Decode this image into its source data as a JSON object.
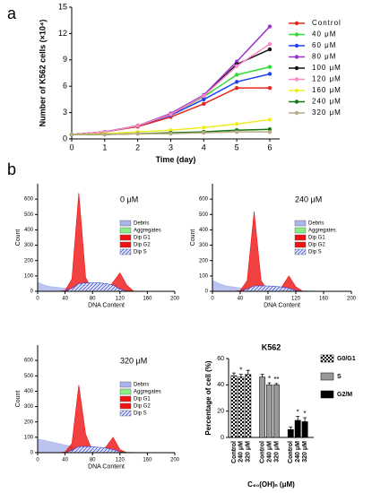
{
  "panels": [
    "a",
    "b"
  ],
  "chart_data": [
    {
      "type": "line",
      "xlabel": "Time (day)",
      "ylabel": "Number of K562 cells (×10⁴)",
      "x": [
        0,
        1,
        2,
        3,
        4,
        5,
        6
      ],
      "xlim": [
        0,
        6.3
      ],
      "xticks": [
        0,
        1,
        2,
        3,
        4,
        5,
        6
      ],
      "ylim": [
        0,
        15
      ],
      "yticks": [
        0,
        3,
        6,
        9,
        12,
        15
      ],
      "series": [
        {
          "name": "Control",
          "color": "#e8281e",
          "values": [
            0.5,
            0.8,
            1.4,
            2.5,
            4.0,
            5.8,
            5.8
          ]
        },
        {
          "name": "40 μM",
          "color": "#33dd33",
          "values": [
            0.5,
            0.8,
            1.5,
            2.8,
            4.8,
            7.3,
            8.2
          ]
        },
        {
          "name": "60 μM",
          "color": "#2244ee",
          "values": [
            0.5,
            0.8,
            1.5,
            2.7,
            4.5,
            6.5,
            7.4
          ]
        },
        {
          "name": "80 μM",
          "color": "#9933cc",
          "values": [
            0.5,
            0.8,
            1.5,
            2.9,
            5.0,
            8.8,
            12.8
          ]
        },
        {
          "name": "100 μM",
          "color": "#111111",
          "values": [
            0.5,
            0.8,
            1.5,
            2.8,
            4.9,
            8.5,
            10.2
          ]
        },
        {
          "name": "120 μM",
          "color": "#ff88cc",
          "values": [
            0.5,
            0.8,
            1.5,
            2.8,
            4.9,
            8.3,
            10.8
          ]
        },
        {
          "name": "160 μM",
          "color": "#eeee22",
          "values": [
            0.5,
            0.6,
            0.8,
            1.0,
            1.3,
            1.7,
            2.2
          ]
        },
        {
          "name": "240 μM",
          "color": "#117711",
          "values": [
            0.5,
            0.5,
            0.6,
            0.7,
            0.8,
            1.0,
            1.1
          ]
        },
        {
          "name": "320 μM",
          "color": "#bbaa88",
          "values": [
            0.5,
            0.5,
            0.6,
            0.6,
            0.7,
            0.8,
            0.8
          ]
        }
      ]
    },
    {
      "type": "area",
      "title": "0 μM",
      "xlabel": "DNA Content",
      "ylabel": "Count",
      "x": [
        0,
        10,
        20,
        30,
        40,
        50,
        60,
        70,
        80,
        90,
        100,
        110,
        120,
        130,
        140,
        150,
        160,
        170,
        180,
        190,
        200
      ],
      "xlim": [
        0,
        200
      ],
      "xticks": [
        0,
        40,
        80,
        120,
        160,
        200
      ],
      "ylim": [
        0,
        700
      ],
      "yticks": [
        0,
        100,
        200,
        300,
        400,
        500,
        600
      ],
      "series": [
        {
          "name": "Debris",
          "color": "#aab4ee",
          "values": [
            60,
            40,
            30,
            25,
            20,
            15,
            12,
            10,
            8,
            6,
            5,
            4,
            3,
            2,
            2,
            1,
            0,
            0,
            0,
            0,
            0
          ]
        },
        {
          "name": "Aggregates",
          "color": "#88ee88",
          "values": [
            0,
            0,
            0,
            0,
            0,
            0,
            0,
            0,
            0,
            0,
            0,
            2,
            3,
            3,
            2,
            1,
            0,
            0,
            0,
            0,
            0
          ]
        },
        {
          "name": "Dip G1",
          "color": "#ee1111",
          "values": [
            0,
            0,
            0,
            0,
            5,
            80,
            640,
            90,
            5,
            0,
            0,
            0,
            0,
            0,
            0,
            0,
            0,
            0,
            0,
            0,
            0
          ]
        },
        {
          "name": "Dip G2",
          "color": "#ee1111",
          "values": [
            0,
            0,
            0,
            0,
            0,
            0,
            0,
            0,
            0,
            0,
            0,
            60,
            120,
            40,
            0,
            0,
            0,
            0,
            0,
            0,
            0
          ]
        },
        {
          "name": "Dip S",
          "color": "#3344cc",
          "pattern": "diag",
          "values": [
            0,
            0,
            0,
            0,
            0,
            20,
            50,
            55,
            55,
            55,
            50,
            40,
            15,
            0,
            0,
            0,
            0,
            0,
            0,
            0,
            0
          ]
        }
      ]
    },
    {
      "type": "area",
      "title": "240 μM",
      "xlabel": "DNA Content",
      "ylabel": "Count",
      "x": [
        0,
        10,
        20,
        30,
        40,
        50,
        60,
        70,
        80,
        90,
        100,
        110,
        120,
        130,
        140,
        150,
        160,
        170,
        180,
        190,
        200
      ],
      "xlim": [
        0,
        200
      ],
      "xticks": [
        0,
        40,
        80,
        120,
        160,
        200
      ],
      "ylim": [
        0,
        700
      ],
      "yticks": [
        0,
        100,
        200,
        300,
        400,
        500,
        600
      ],
      "series": [
        {
          "name": "Debris",
          "color": "#aab4ee",
          "values": [
            70,
            50,
            35,
            28,
            22,
            18,
            14,
            11,
            9,
            7,
            6,
            5,
            4,
            3,
            2,
            1,
            0,
            0,
            0,
            0,
            0
          ]
        },
        {
          "name": "Aggregates",
          "color": "#88ee88",
          "values": [
            0,
            0,
            0,
            0,
            0,
            0,
            0,
            0,
            0,
            0,
            0,
            2,
            3,
            3,
            2,
            1,
            0,
            0,
            0,
            0,
            0
          ]
        },
        {
          "name": "Dip G1",
          "color": "#ee1111",
          "values": [
            0,
            0,
            0,
            0,
            5,
            70,
            520,
            70,
            5,
            0,
            0,
            0,
            0,
            0,
            0,
            0,
            0,
            0,
            0,
            0,
            0
          ]
        },
        {
          "name": "Dip G2",
          "color": "#ee1111",
          "values": [
            0,
            0,
            0,
            0,
            0,
            0,
            0,
            0,
            0,
            0,
            30,
            100,
            30,
            0,
            0,
            0,
            0,
            0,
            0,
            0,
            0
          ]
        },
        {
          "name": "Dip S",
          "color": "#3344cc",
          "pattern": "diag",
          "values": [
            0,
            0,
            0,
            0,
            0,
            15,
            35,
            35,
            35,
            32,
            28,
            20,
            5,
            0,
            0,
            0,
            0,
            0,
            0,
            0,
            0
          ]
        }
      ]
    },
    {
      "type": "area",
      "title": "320 μM",
      "xlabel": "DNA Content",
      "ylabel": "Count",
      "x": [
        0,
        10,
        20,
        30,
        40,
        50,
        60,
        70,
        80,
        90,
        100,
        110,
        120,
        130,
        140,
        150,
        160,
        170,
        180,
        190,
        200
      ],
      "xlim": [
        0,
        200
      ],
      "xticks": [
        0,
        40,
        80,
        120,
        160,
        200
      ],
      "ylim": [
        0,
        700
      ],
      "yticks": [
        0,
        100,
        200,
        300,
        400,
        500,
        600
      ],
      "series": [
        {
          "name": "Debris",
          "color": "#aab4ee",
          "values": [
            90,
            80,
            70,
            60,
            50,
            40,
            30,
            22,
            15,
            10,
            7,
            5,
            4,
            3,
            2,
            1,
            0,
            0,
            0,
            0,
            0
          ]
        },
        {
          "name": "Aggregates",
          "color": "#88ee88",
          "values": [
            0,
            0,
            0,
            0,
            0,
            0,
            0,
            0,
            0,
            0,
            0,
            2,
            3,
            3,
            2,
            1,
            0,
            0,
            0,
            0,
            0
          ]
        },
        {
          "name": "Dip G1",
          "color": "#ee1111",
          "values": [
            0,
            0,
            0,
            0,
            5,
            60,
            440,
            120,
            10,
            0,
            0,
            0,
            0,
            0,
            0,
            0,
            0,
            0,
            0,
            0,
            0
          ]
        },
        {
          "name": "Dip G2",
          "color": "#ee1111",
          "values": [
            0,
            0,
            0,
            0,
            0,
            0,
            0,
            0,
            0,
            0,
            40,
            100,
            20,
            0,
            0,
            0,
            0,
            0,
            0,
            0,
            0
          ]
        },
        {
          "name": "Dip S",
          "color": "#3344cc",
          "pattern": "diag",
          "values": [
            0,
            0,
            0,
            0,
            0,
            15,
            40,
            40,
            38,
            35,
            30,
            20,
            5,
            0,
            0,
            0,
            0,
            0,
            0,
            0,
            0
          ]
        }
      ]
    },
    {
      "type": "bar",
      "title": "K562",
      "xlabel": "C₆₀(OH)ₙ (μM)",
      "ylabel": "Percentage of cell (%)",
      "categories": [
        "Control",
        "240 μM",
        "320 μM"
      ],
      "ylim": [
        0,
        60
      ],
      "yticks": [
        0,
        20,
        40,
        60
      ],
      "series": [
        {
          "name": "G0/G1",
          "color": "#222222",
          "pattern": "check",
          "values": [
            47,
            46,
            48
          ],
          "errors": [
            2,
            2,
            3
          ]
        },
        {
          "name": "S",
          "color": "#999999",
          "values": [
            46,
            40,
            40
          ],
          "errors": [
            2,
            1.5,
            1
          ]
        },
        {
          "name": "G2/M",
          "color": "#000000",
          "values": [
            6,
            13,
            12
          ],
          "errors": [
            2,
            3,
            3
          ]
        }
      ],
      "annotations": [
        {
          "text": "*",
          "series": 0,
          "category": 1
        },
        {
          "text": "*",
          "series": 1,
          "category": 1
        },
        {
          "text": "**",
          "series": 1,
          "category": 2
        },
        {
          "text": "*",
          "series": 2,
          "category": 1
        },
        {
          "text": "*",
          "series": 2,
          "category": 2
        }
      ]
    }
  ]
}
